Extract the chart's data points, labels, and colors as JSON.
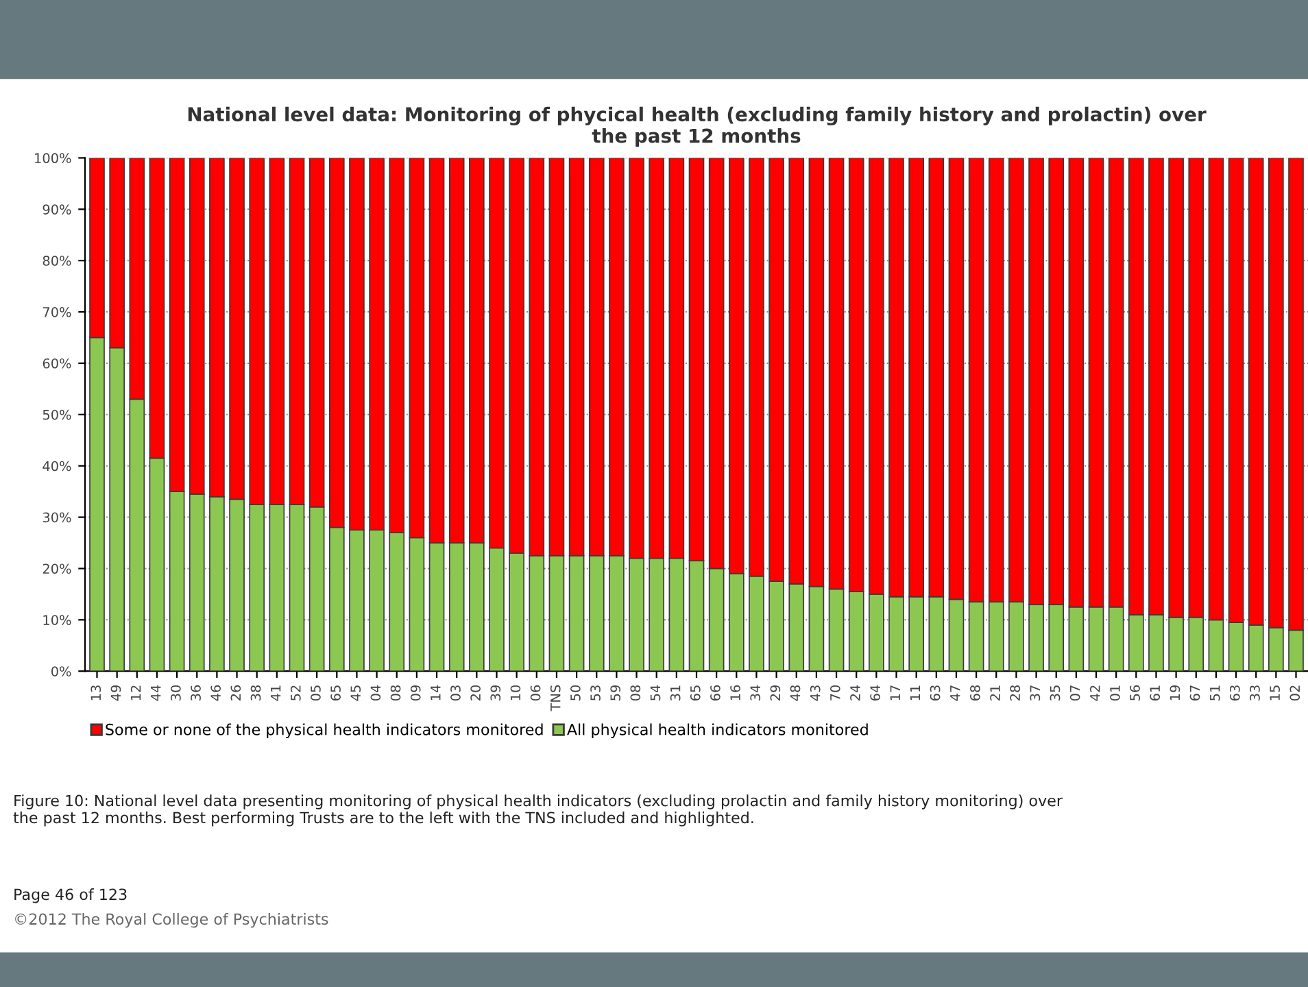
{
  "chart_data": {
    "type": "bar",
    "stacked": true,
    "title": "National level data: Monitoring of phycical health (excluding family history and prolactin) over\nthe past 12 months",
    "categories": [
      "13",
      "49",
      "12",
      "44",
      "30",
      "36",
      "46",
      "26",
      "38",
      "41",
      "52",
      "05",
      "65",
      "45",
      "04",
      "08",
      "09",
      "14",
      "03",
      "20",
      "39",
      "10",
      "06",
      "TNS",
      "50",
      "53",
      "59",
      "08",
      "54",
      "31",
      "65",
      "66",
      "16",
      "34",
      "29",
      "48",
      "43",
      "70",
      "24",
      "64",
      "17",
      "11",
      "63",
      "47",
      "68",
      "21",
      "28",
      "37",
      "35",
      "07",
      "42",
      "01",
      "56",
      "61",
      "19",
      "67",
      "51",
      "63",
      "33",
      "15",
      "02"
    ],
    "series": [
      {
        "name": "All physical health indicators monitored",
        "color": "#8cc751",
        "values": [
          65,
          63,
          53,
          41.5,
          35,
          34.5,
          34,
          33.5,
          32.5,
          32.5,
          32.5,
          32,
          28,
          27.5,
          27.5,
          27,
          26,
          25,
          25,
          25,
          24,
          23,
          22.5,
          22.5,
          22.5,
          22.5,
          22.5,
          22,
          22,
          22,
          21.5,
          20,
          19,
          18.5,
          17.5,
          17,
          16.5,
          16,
          15.5,
          15,
          14.5,
          14.5,
          14.5,
          14,
          13.5,
          13.5,
          13.5,
          13,
          13,
          12.5,
          12.5,
          12.5,
          11,
          11,
          10.5,
          10.5,
          10,
          9.5,
          9,
          8.5,
          8
        ]
      },
      {
        "name": "Some or none of the physical health indicators monitored",
        "color": "#ff0000",
        "values": [
          35,
          37,
          47,
          58.5,
          65,
          65.5,
          66,
          66.5,
          67.5,
          67.5,
          67.5,
          68,
          72,
          72.5,
          72.5,
          73,
          74,
          75,
          75,
          75,
          76,
          77,
          77.5,
          77.5,
          77.5,
          77.5,
          77.5,
          78,
          78,
          78,
          78.5,
          80,
          81,
          81.5,
          82.5,
          83,
          83.5,
          84,
          84.5,
          85,
          85.5,
          85.5,
          85.5,
          86,
          86.5,
          86.5,
          86.5,
          87,
          87,
          87.5,
          87.5,
          87.5,
          89,
          89,
          89.5,
          89.5,
          90,
          90.5,
          91,
          91.5,
          92
        ]
      }
    ],
    "ylim": [
      0,
      100
    ],
    "yticks": [
      {
        "value": 0,
        "label": "0%"
      },
      {
        "value": 10,
        "label": "10%"
      },
      {
        "value": 20,
        "label": "20%"
      },
      {
        "value": 30,
        "label": "30%"
      },
      {
        "value": 40,
        "label": "40%"
      },
      {
        "value": 50,
        "label": "50%"
      },
      {
        "value": 60,
        "label": "60%"
      },
      {
        "value": 70,
        "label": "70%"
      },
      {
        "value": 80,
        "label": "80%"
      },
      {
        "value": 90,
        "label": "90%"
      },
      {
        "value": 100,
        "label": "100%"
      }
    ],
    "grid": "y",
    "legend": "bottom",
    "annotations": [
      "Figure 10: National level data presenting monitoring of physical health indicators (excluding prolactin and family history monitoring) over\nthe past 12 months. Best performing Trusts are to the left with the TNS included and highlighted.",
      "Page 46 of 123",
      "©2012 The Royal College of Psychiatrists"
    ]
  }
}
